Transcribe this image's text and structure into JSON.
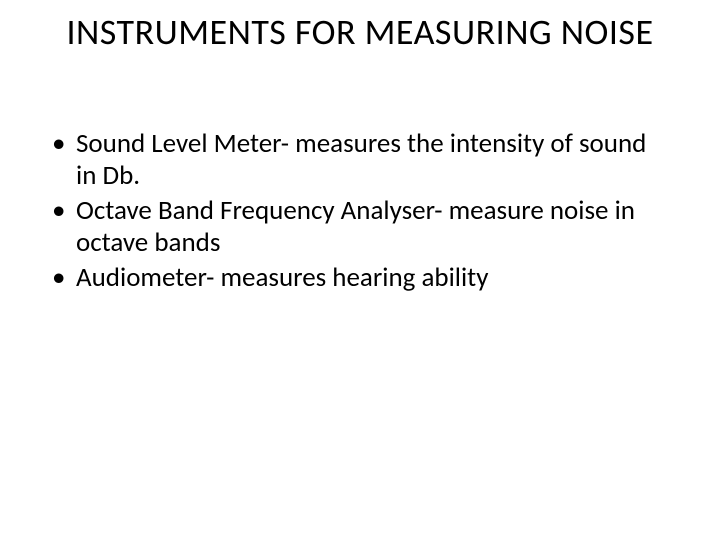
{
  "colors": {
    "background": "#ffffff",
    "text": "#000000"
  },
  "typography": {
    "title_fontsize": 36,
    "body_fontsize": 27,
    "font_family": "Calibri"
  },
  "title": "INSTRUMENTS FOR MEASURING NOISE",
  "bullets": [
    "Sound Level Meter- measures the intensity of sound in Db.",
    "Octave Band Frequency Analyser- measure noise in octave bands",
    "Audiometer- measures hearing ability"
  ]
}
